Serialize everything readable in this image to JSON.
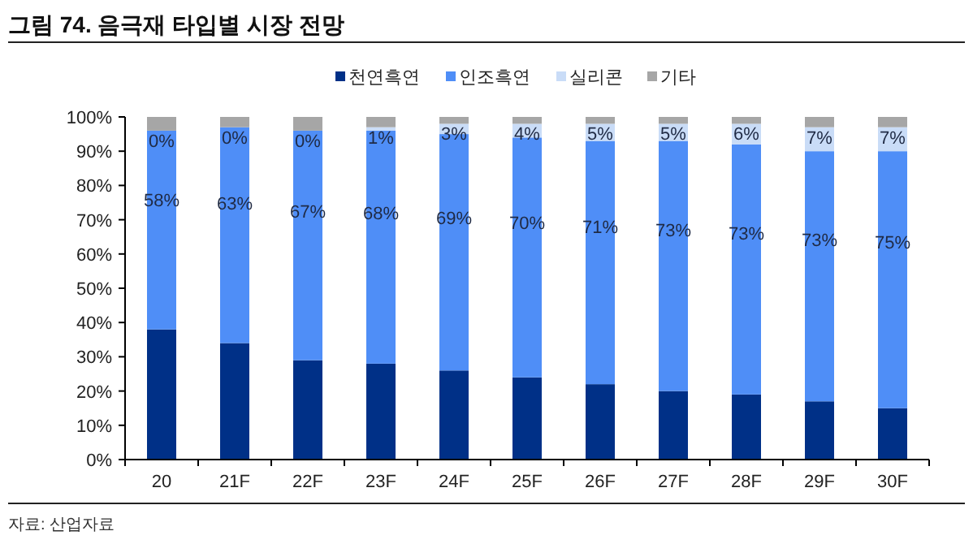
{
  "chart_data": {
    "type": "bar",
    "stacked": true,
    "title": "그림 74. 음극재 타입별 시장 전망",
    "categories": [
      "20",
      "21F",
      "22F",
      "23F",
      "24F",
      "25F",
      "26F",
      "27F",
      "28F",
      "29F",
      "30F"
    ],
    "series": [
      {
        "name": "천연흑연",
        "color": "#003087",
        "values": [
          38,
          34,
          29,
          28,
          26,
          24,
          22,
          20,
          19,
          17,
          15
        ]
      },
      {
        "name": "인조흑연",
        "color": "#4f8ef7",
        "values": [
          58,
          63,
          67,
          68,
          69,
          70,
          71,
          73,
          73,
          73,
          75
        ],
        "value_labels": [
          "58%",
          "63%",
          "67%",
          "68%",
          "69%",
          "70%",
          "71%",
          "73%",
          "73%",
          "73%",
          "75%"
        ]
      },
      {
        "name": "실리콘",
        "color": "#c9dcf7",
        "values": [
          0,
          0,
          0,
          1,
          3,
          4,
          5,
          5,
          6,
          7,
          7
        ],
        "value_labels": [
          "0%",
          "0%",
          "0%",
          "1%",
          "3%",
          "4%",
          "5%",
          "5%",
          "6%",
          "7%",
          "7%"
        ]
      },
      {
        "name": "기타",
        "color": "#a6a6a6",
        "values": [
          4,
          3,
          4,
          3,
          2,
          2,
          2,
          2,
          2,
          3,
          3
        ]
      }
    ],
    "ylim": [
      0,
      100
    ],
    "yticks": [
      {
        "value": 0,
        "label": "0%"
      },
      {
        "value": 10,
        "label": "10%"
      },
      {
        "value": 20,
        "label": "20%"
      },
      {
        "value": 30,
        "label": "30%"
      },
      {
        "value": 40,
        "label": "40%"
      },
      {
        "value": 50,
        "label": "50%"
      },
      {
        "value": 60,
        "label": "60%"
      },
      {
        "value": 70,
        "label": "70%"
      },
      {
        "value": 80,
        "label": "80%"
      },
      {
        "value": 90,
        "label": "90%"
      },
      {
        "value": 100,
        "label": "100%"
      }
    ],
    "legend": "top",
    "grid": false,
    "annotations": [
      "자료: 산업자료"
    ]
  }
}
